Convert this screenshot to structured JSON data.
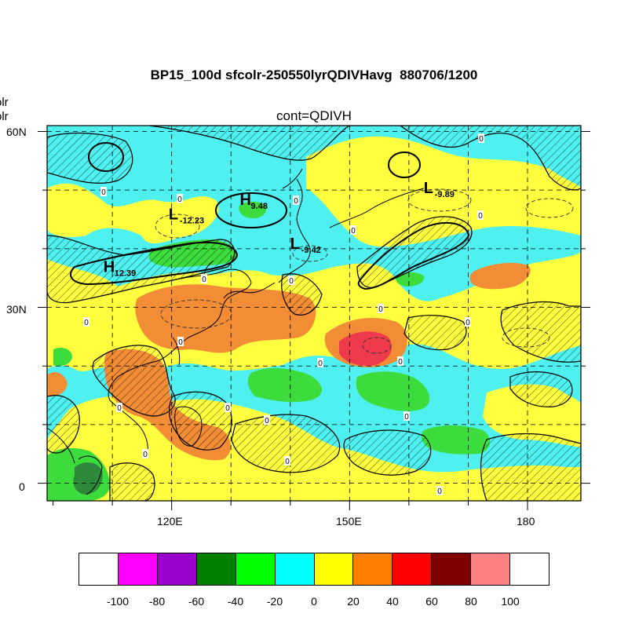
{
  "title": "BP15_100d sfcolr-250550lyrQDIVHavg  880706/1200",
  "subtitle": "cont=QDIVH",
  "corner_text": [
    "olr",
    "olr"
  ],
  "map": {
    "lat_labels": [
      "60N",
      "30N",
      "0"
    ],
    "lon_labels": [
      "120E",
      "150E",
      "180"
    ],
    "lat_range": [
      -3,
      61
    ],
    "lon_range": [
      99,
      189
    ],
    "contour_label": "0",
    "pressure_systems": [
      {
        "type": "L",
        "value": "-12.23",
        "lon": 119.5,
        "lat": 45.0
      },
      {
        "type": "H",
        "value": "9.48",
        "lon": 131.5,
        "lat": 47.5
      },
      {
        "type": "L",
        "value": "-9.42",
        "lon": 140.0,
        "lat": 40.0
      },
      {
        "type": "L",
        "value": "-9.89",
        "lon": 162.5,
        "lat": 49.5
      },
      {
        "type": "H",
        "value": "12.39",
        "lon": 108.5,
        "lat": 36.0
      }
    ]
  },
  "colorbar": {
    "labels": [
      "-100",
      "-80",
      "-60",
      "-40",
      "-20",
      "0",
      "20",
      "40",
      "60",
      "80",
      "100"
    ],
    "colors": [
      "#ffffff",
      "#ff00ff",
      "#9900cc",
      "#008000",
      "#00ff00",
      "#00ffff",
      "#ffff00",
      "#ff8000",
      "#ff0000",
      "#800000",
      "#ff8080",
      "#ffffff"
    ]
  },
  "palette": {
    "cyan": "#4ff0f0",
    "yellow": "#ffff40",
    "orange": "#f28c35",
    "red": "#ee3a4a",
    "green": "#3ddc3d",
    "darkgreen": "#2e8a3a"
  }
}
